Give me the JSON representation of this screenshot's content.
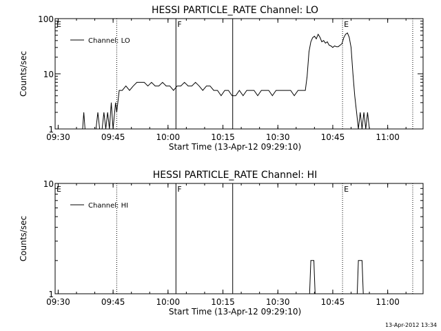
{
  "footer_timestamp": "13-Apr-2012 13:34",
  "chart_data": [
    {
      "type": "line",
      "title": "HESSI PARTICLE_RATE Channel: LO",
      "ylabel": "Counts/sec",
      "xlabel": "Start Time (13-Apr-12 09:29:10)",
      "yscale": "log",
      "ylim": [
        1,
        100
      ],
      "xlim": [
        "09:29:10",
        "11:09:40"
      ],
      "y_tick_labels": [
        "1",
        "10",
        "100"
      ],
      "x_tick_labels": [
        "09:30",
        "09:45",
        "10:00",
        "10:15",
        "10:30",
        "10:45",
        "11:00"
      ],
      "legend": "top-left",
      "series": [
        {
          "name": "Channel: LO",
          "x": [
            "09:29:10",
            "09:36:40",
            "09:37:00",
            "09:37:20",
            "09:37:40",
            "09:40:20",
            "09:40:50",
            "09:41:20",
            "09:42:00",
            "09:42:30",
            "09:43:00",
            "09:43:30",
            "09:44:00",
            "09:44:30",
            "09:45:00",
            "09:45:40",
            "09:46:00",
            "09:46:40",
            "09:47:30",
            "09:48:30",
            "09:49:30",
            "09:50:30",
            "09:51:30",
            "09:52:30",
            "09:53:30",
            "09:54:30",
            "09:55:30",
            "09:56:30",
            "09:57:30",
            "09:58:30",
            "09:59:30",
            "10:00:30",
            "10:01:30",
            "10:02:30",
            "10:03:30",
            "10:04:30",
            "10:05:30",
            "10:06:30",
            "10:07:30",
            "10:08:30",
            "10:09:30",
            "10:10:30",
            "10:11:30",
            "10:12:30",
            "10:13:30",
            "10:14:30",
            "10:15:30",
            "10:16:30",
            "10:17:30",
            "10:18:30",
            "10:19:30",
            "10:20:30",
            "10:21:30",
            "10:22:30",
            "10:23:30",
            "10:24:30",
            "10:25:30",
            "10:26:30",
            "10:27:30",
            "10:28:30",
            "10:29:30",
            "10:30:30",
            "10:31:30",
            "10:32:30",
            "10:33:30",
            "10:34:30",
            "10:35:30",
            "10:36:30",
            "10:37:30",
            "10:38:00",
            "10:38:30",
            "10:39:00",
            "10:39:30",
            "10:40:00",
            "10:40:30",
            "10:41:00",
            "10:41:30",
            "10:42:00",
            "10:42:30",
            "10:43:00",
            "10:43:30",
            "10:44:00",
            "10:44:30",
            "10:45:00",
            "10:45:30",
            "10:46:00",
            "10:46:30",
            "10:47:00",
            "10:47:30",
            "10:48:00",
            "10:48:30",
            "10:49:00",
            "10:49:30",
            "10:50:00",
            "10:50:30",
            "10:51:00",
            "10:51:30",
            "10:52:00",
            "10:52:30",
            "10:53:00",
            "10:53:30",
            "10:54:00",
            "10:54:30",
            "10:55:00",
            "10:55:30",
            "10:56:00",
            "10:56:30",
            "10:57:00",
            "10:57:30",
            "10:58:00",
            "10:58:30",
            "10:59:00",
            "11:09:40"
          ],
          "y": [
            1,
            1,
            2,
            1,
            1,
            1,
            2,
            1,
            1,
            2,
            1,
            2,
            1,
            3,
            1,
            3,
            2,
            5,
            5,
            6,
            5,
            6,
            7,
            7,
            7,
            6,
            7,
            6,
            6,
            7,
            6,
            6,
            5,
            6,
            6,
            7,
            6,
            6,
            7,
            6,
            5,
            6,
            6,
            5,
            5,
            4,
            5,
            5,
            4,
            4,
            5,
            4,
            5,
            5,
            5,
            4,
            5,
            5,
            5,
            4,
            5,
            5,
            5,
            5,
            5,
            4,
            5,
            5,
            5,
            9,
            25,
            38,
            45,
            48,
            43,
            52,
            46,
            38,
            40,
            36,
            38,
            33,
            32,
            30,
            32,
            31,
            31,
            33,
            35,
            45,
            52,
            55,
            46,
            30,
            10,
            4,
            2,
            1,
            2,
            1,
            2,
            1,
            2,
            1,
            1,
            1,
            1,
            1,
            1,
            1,
            1,
            1,
            1
          ]
        }
      ],
      "markers": [
        {
          "label": "E",
          "time": "09:29:10",
          "style": "solid"
        },
        {
          "label": "",
          "time": "09:46:00",
          "style": "dotted"
        },
        {
          "label": "F",
          "time": "10:02:10",
          "style": "solid"
        },
        {
          "label": "",
          "time": "10:17:40",
          "style": "solid"
        },
        {
          "label": "E",
          "time": "10:47:40",
          "style": "dotted"
        },
        {
          "label": "",
          "time": "11:06:50",
          "style": "dotted"
        }
      ]
    },
    {
      "type": "line",
      "title": "HESSI PARTICLE_RATE Channel: HI",
      "ylabel": "Counts/sec",
      "xlabel": "Start Time (13-Apr-12 09:29:10)",
      "yscale": "log",
      "ylim": [
        1,
        10
      ],
      "xlim": [
        "09:29:10",
        "11:09:40"
      ],
      "y_tick_labels": [
        "1",
        "10"
      ],
      "x_tick_labels": [
        "09:30",
        "09:45",
        "10:00",
        "10:15",
        "10:30",
        "10:45",
        "11:00"
      ],
      "legend": "top-left",
      "series": [
        {
          "name": "Channel: HI",
          "x": [
            "09:29:10",
            "10:38:40",
            "10:39:00",
            "10:39:50",
            "10:40:10",
            "10:51:40",
            "10:52:00",
            "10:53:00",
            "10:53:20",
            "11:09:40"
          ],
          "y": [
            1,
            1,
            2,
            2,
            1,
            1,
            2,
            2,
            1,
            1
          ]
        }
      ],
      "markers": [
        {
          "label": "E",
          "time": "09:29:10",
          "style": "solid"
        },
        {
          "label": "",
          "time": "09:46:00",
          "style": "dotted"
        },
        {
          "label": "F",
          "time": "10:02:10",
          "style": "solid"
        },
        {
          "label": "",
          "time": "10:17:40",
          "style": "solid"
        },
        {
          "label": "E",
          "time": "10:47:40",
          "style": "dotted"
        },
        {
          "label": "",
          "time": "11:06:50",
          "style": "dotted"
        }
      ]
    }
  ]
}
